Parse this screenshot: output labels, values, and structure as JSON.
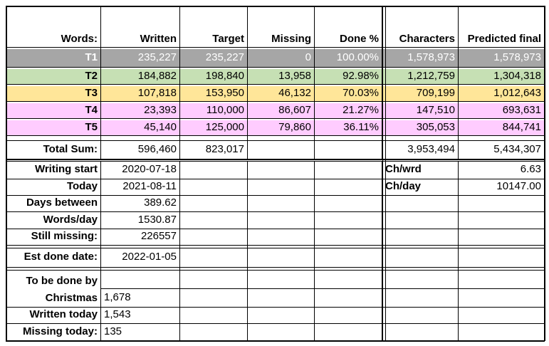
{
  "header": {
    "label": "Words:",
    "written": "Written",
    "target": "Target",
    "missing": "Missing",
    "done_pct": "Done %",
    "characters": "Characters",
    "predicted_final": "Predicted final"
  },
  "rows": [
    {
      "name": "T1",
      "written": "235,227",
      "target": "235,227",
      "missing": "0",
      "done": "100.00%",
      "chars": "1,578,973",
      "predicted": "1,578,973",
      "bg": "#a6a6a6",
      "fg": "#ffffff"
    },
    {
      "name": "T2",
      "written": "184,882",
      "target": "198,840",
      "missing": "13,958",
      "done": "92.98%",
      "chars": "1,212,759",
      "predicted": "1,304,318",
      "bg": "#c6e0b4",
      "fg": "#000000"
    },
    {
      "name": "T3",
      "written": "107,818",
      "target": "153,950",
      "missing": "46,132",
      "done": "70.03%",
      "chars": "709,199",
      "predicted": "1,012,643",
      "bg": "#ffe699",
      "fg": "#000000"
    },
    {
      "name": "T4",
      "written": "23,393",
      "target": "110,000",
      "missing": "86,607",
      "done": "21.27%",
      "chars": "147,510",
      "predicted": "693,631",
      "bg": "#ffccff",
      "fg": "#000000"
    },
    {
      "name": "T5",
      "written": "45,140",
      "target": "125,000",
      "missing": "79,860",
      "done": "36.11%",
      "chars": "305,053",
      "predicted": "844,741",
      "bg": "#ffccff",
      "fg": "#000000"
    }
  ],
  "total": {
    "label": "Total Sum:",
    "written": "596,460",
    "target": "823,017",
    "chars": "3,953,494",
    "predicted": "5,434,307"
  },
  "stats": {
    "writing_start_label": "Writing start",
    "writing_start": "2020-07-18",
    "today_label": "Today",
    "today": "2021-08-11",
    "days_between_label": "Days between",
    "days_between": "389.62",
    "words_day_label": "Words/day",
    "words_day": "1530.87",
    "still_missing_label": "Still missing:",
    "still_missing": "226557",
    "ch_wrd_label": "Ch/wrd",
    "ch_wrd": "6.63",
    "ch_day_label": "Ch/day",
    "ch_day": "10147.00"
  },
  "est": {
    "label": "Est done date:",
    "value": "2022-01-05"
  },
  "christmas": {
    "label_line1": "To be done by",
    "label_line2": "Christmas",
    "value": "1,678",
    "written_today_label": "Written today",
    "written_today": "1,543",
    "missing_today_label": "Missing today:",
    "missing_today": "135"
  }
}
